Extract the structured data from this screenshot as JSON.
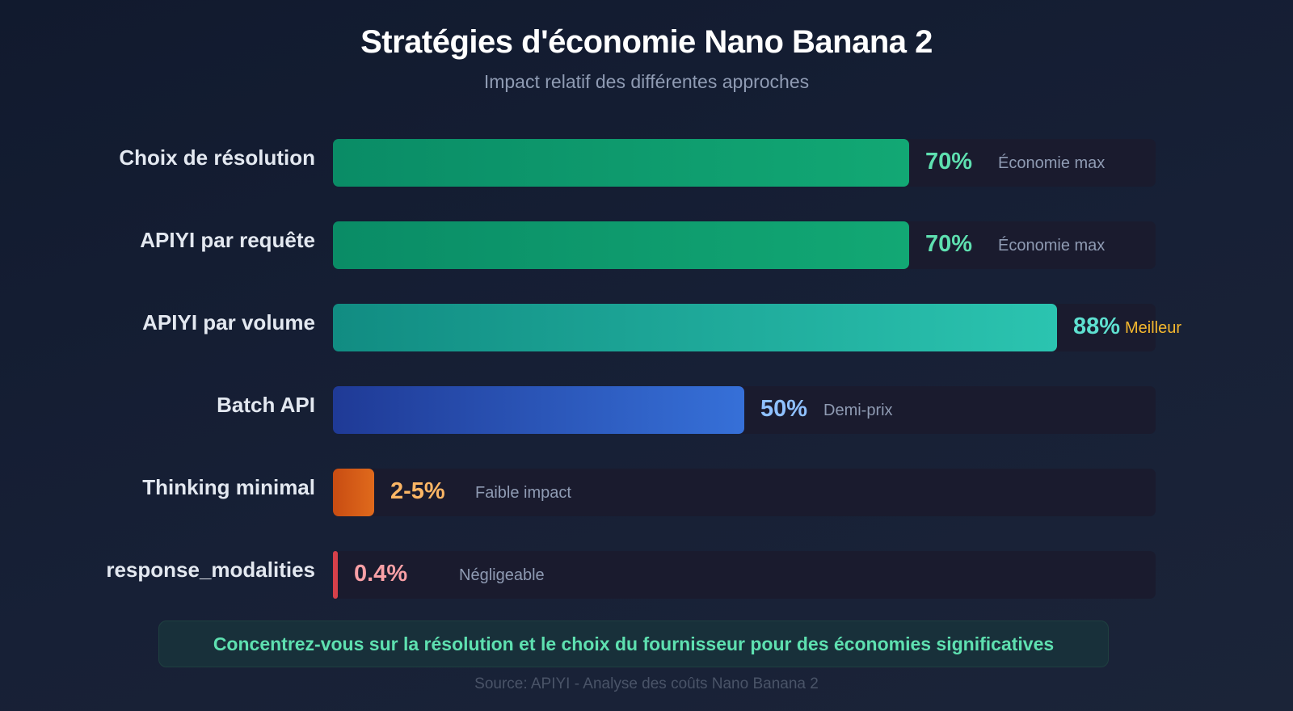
{
  "header": {
    "title": "Stratégies d'économie Nano Banana 2",
    "subtitle": "Impact relatif des différentes approches"
  },
  "rows": [
    {
      "label": "Choix de résolution",
      "value_label": "70%",
      "note": "Économie max",
      "pct": 70,
      "gradient": [
        "#0a8c66",
        "#12a874"
      ],
      "value_color": "#5ee0b0",
      "note_color": "#8f9bb3"
    },
    {
      "label": "APIYI par requête",
      "value_label": "70%",
      "note": "Économie max",
      "pct": 70,
      "gradient": [
        "#0a8c66",
        "#12a874"
      ],
      "value_color": "#5ee0b0",
      "note_color": "#8f9bb3"
    },
    {
      "label": "APIYI par volume",
      "value_label": "88%",
      "note": "Meilleur",
      "pct": 88,
      "gradient": [
        "#118c82",
        "#2bc4b0"
      ],
      "value_color": "#5ee0d0",
      "note_color": "#f5b82e"
    },
    {
      "label": "Batch API",
      "value_label": "50%",
      "note": "Demi-prix",
      "pct": 50,
      "gradient": [
        "#1f3a96",
        "#3670d8"
      ],
      "value_color": "#8fc1ff",
      "note_color": "#8f9bb3"
    },
    {
      "label": "Thinking minimal",
      "value_label": "2-5%",
      "note": "Faible impact",
      "pct": 5,
      "gradient": [
        "#c84c12",
        "#e06a1c"
      ],
      "value_color": "#fbb665",
      "note_color": "#8f9bb3"
    },
    {
      "label": "response_modalities",
      "value_label": "0.4%",
      "note": "Négligeable",
      "pct": 0.4,
      "gradient": [
        "#d6404a",
        "#d6404a"
      ],
      "value_color": "#f9a0a6",
      "note_color": "#8f9bb3"
    }
  ],
  "callout": "Concentrez-vous sur la résolution et le choix du fournisseur pour des économies significatives",
  "source": "Source: APIYI - Analyse des coûts Nano Banana 2",
  "chart_data": {
    "type": "bar",
    "orientation": "horizontal",
    "title": "Stratégies d'économie Nano Banana 2",
    "subtitle": "Impact relatif des différentes approches",
    "categories": [
      "Choix de résolution",
      "APIYI par requête",
      "APIYI par volume",
      "Batch API",
      "Thinking minimal",
      "response_modalities"
    ],
    "values": [
      70,
      70,
      88,
      50,
      5,
      0.4
    ],
    "value_labels": [
      "70%",
      "70%",
      "88%",
      "50%",
      "2-5%",
      "0.4%"
    ],
    "annotations": [
      "Économie max",
      "Économie max",
      "Meilleur",
      "Demi-prix",
      "Faible impact",
      "Négligeable"
    ],
    "xlabel": "",
    "ylabel": "",
    "xlim": [
      0,
      100
    ],
    "grid": false,
    "legend": "none"
  }
}
